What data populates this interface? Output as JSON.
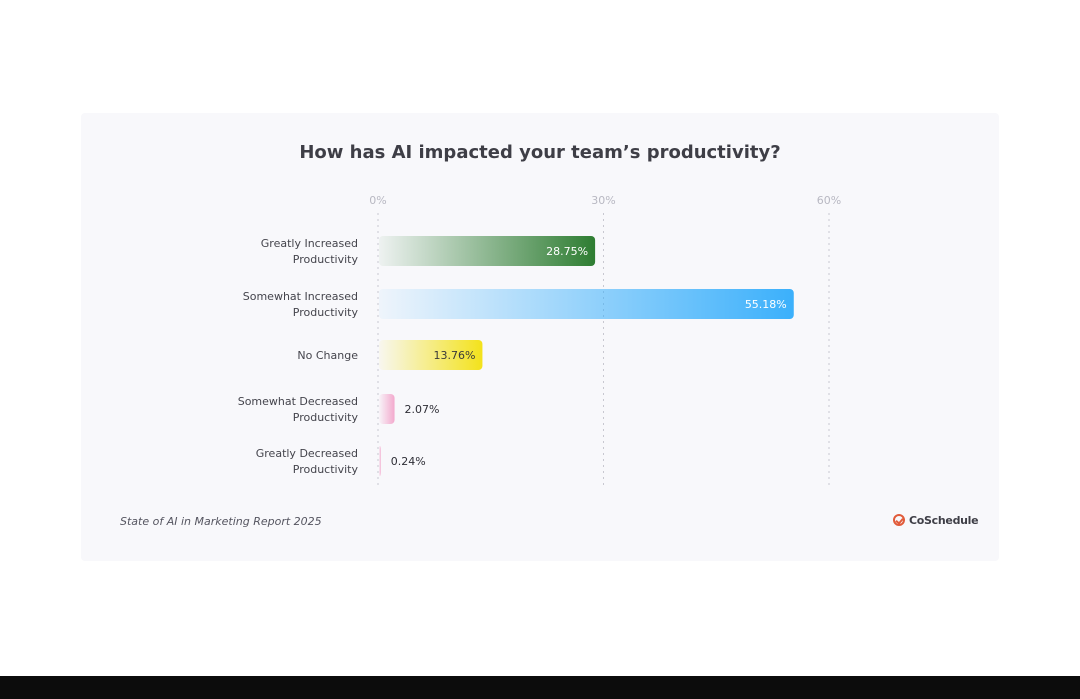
{
  "chart_data": {
    "type": "bar",
    "orientation": "horizontal",
    "title": "How has AI impacted your team’s productivity?",
    "categories": [
      [
        "Greatly Increased",
        "Productivity"
      ],
      [
        "Somewhat Increased",
        "Productivity"
      ],
      [
        "No Change"
      ],
      [
        "Somewhat Decreased",
        "Productivity"
      ],
      [
        "Greatly Decreased",
        "Productivity"
      ]
    ],
    "values": [
      28.75,
      55.18,
      13.76,
      2.07,
      0.24
    ],
    "value_labels": [
      "28.75%",
      "55.18%",
      "13.76%",
      "2.07%",
      "0.24%"
    ],
    "bar_colors": [
      "#2e7d32",
      "#3bb0fb",
      "#f3e21b",
      "#f3a9cd",
      "#f3a9cd"
    ],
    "xlim": [
      0,
      60
    ],
    "xticks": [
      {
        "value": 0,
        "label": "0%"
      },
      {
        "value": 30,
        "label": "30%"
      },
      {
        "value": 60,
        "label": "60%"
      }
    ],
    "grid": true
  },
  "footer": {
    "source": "State of AI in Marketing Report 2025",
    "brand": "CoSchedule"
  },
  "colors": {
    "card_background": "#f8f8fb",
    "title": "#3e3e46",
    "brand_accent": "#e15b3a"
  }
}
